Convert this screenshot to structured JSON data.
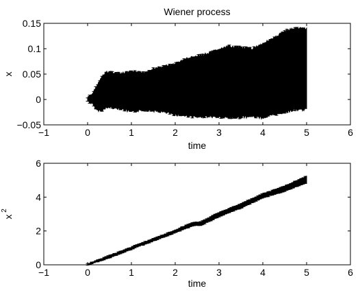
{
  "chart_data": [
    {
      "type": "line",
      "title": "Wiener process",
      "xlabel": "time",
      "ylabel": "x",
      "xlim": [
        -1,
        6
      ],
      "ylim": [
        -0.05,
        0.15
      ],
      "xticks": [
        "−1",
        "0",
        "1",
        "2",
        "3",
        "4",
        "5",
        "6"
      ],
      "yticks": [
        "−0.05",
        "0",
        "0.05",
        "0.1",
        "0.15"
      ],
      "grid": false,
      "error_bars": true,
      "series": [
        {
          "x": [
            0,
            0.1,
            0.2,
            0.3,
            0.4,
            0.5,
            0.75,
            1.0,
            1.25,
            1.5,
            1.75,
            2.0,
            2.25,
            2.5,
            2.75,
            3.0,
            3.25,
            3.5,
            3.75,
            4.0,
            4.25,
            4.5,
            4.75,
            5.0
          ],
          "y_upper": [
            0.003,
            0.01,
            0.025,
            0.04,
            0.052,
            0.055,
            0.05,
            0.055,
            0.052,
            0.06,
            0.065,
            0.07,
            0.08,
            0.085,
            0.09,
            0.098,
            0.105,
            0.102,
            0.1,
            0.11,
            0.12,
            0.135,
            0.14,
            0.14
          ],
          "y_lower": [
            -0.003,
            -0.008,
            -0.02,
            -0.022,
            -0.018,
            -0.015,
            -0.018,
            -0.025,
            -0.02,
            -0.022,
            -0.025,
            -0.03,
            -0.032,
            -0.035,
            -0.033,
            -0.035,
            -0.036,
            -0.035,
            -0.033,
            -0.036,
            -0.03,
            -0.025,
            -0.02,
            -0.02
          ]
        }
      ]
    },
    {
      "type": "line",
      "title": "",
      "xlabel": "time",
      "ylabel": "x",
      "ylabel_sup": "2",
      "xlim": [
        -1,
        6
      ],
      "ylim": [
        0,
        6
      ],
      "xticks": [
        "−1",
        "0",
        "1",
        "2",
        "3",
        "4",
        "5",
        "6"
      ],
      "yticks": [
        "0",
        "2",
        "4",
        "6"
      ],
      "grid": false,
      "error_bars": true,
      "series": [
        {
          "x": [
            0,
            0.5,
            1.0,
            1.5,
            2.0,
            2.4,
            2.6,
            3.0,
            3.5,
            3.7,
            4.0,
            4.5,
            5.0
          ],
          "y_upper": [
            0.05,
            0.55,
            1.05,
            1.55,
            2.05,
            2.5,
            2.55,
            3.1,
            3.6,
            3.85,
            4.2,
            4.65,
            5.25
          ],
          "y_lower": [
            -0.02,
            0.42,
            0.92,
            1.4,
            1.9,
            2.3,
            2.35,
            2.85,
            3.35,
            3.6,
            3.95,
            4.35,
            4.85
          ]
        }
      ]
    }
  ]
}
